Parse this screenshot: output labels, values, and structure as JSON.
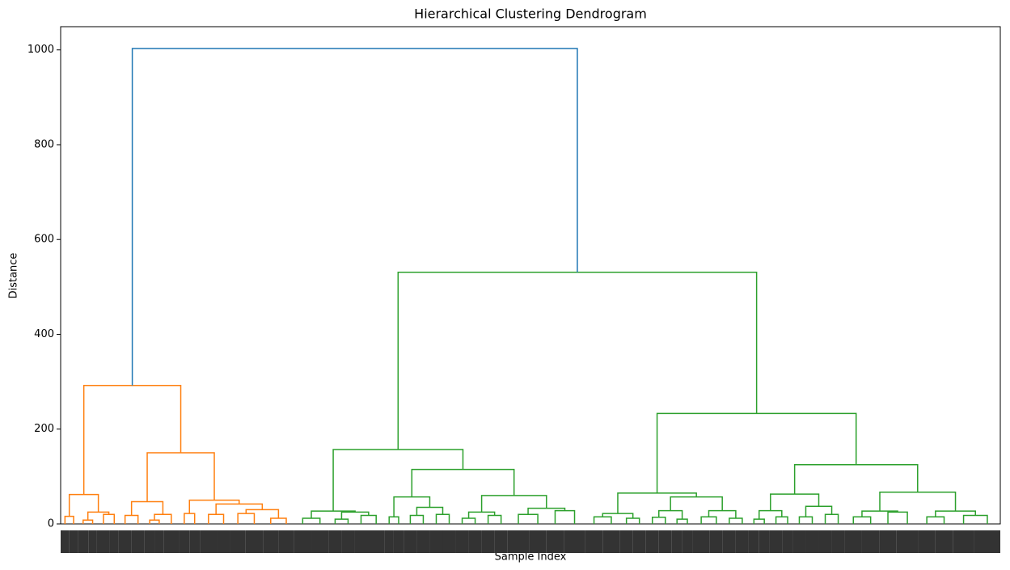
{
  "chart_data": {
    "type": "dendrogram",
    "title": "Hierarchical Clustering Dendrogram",
    "xlabel": "Sample Index",
    "ylabel": "Distance",
    "ylim": [
      0,
      1049
    ],
    "yticks": [
      0,
      200,
      400,
      600,
      800,
      1000
    ],
    "tree": {
      "height": 1003,
      "color": "#1f77b4",
      "children": [
        {
          "height": 292,
          "color": "#ff7f0e",
          "children": [
            {
              "height": 62,
              "children": [
                {
                  "height": 16,
                  "children": [
                    10,
                    10
                  ]
                },
                {
                  "height": 25,
                  "children": [
                    {
                      "height": 8,
                      "children": [
                        12,
                        10
                      ]
                    },
                    {
                      "height": 20,
                      "children": [
                        15,
                        10
                      ]
                    }
                  ]
                }
              ]
            },
            {
              "height": 150,
              "children": [
                {
                  "height": 47,
                  "children": [
                    {
                      "height": 18,
                      "children": [
                        15,
                        15
                      ]
                    },
                    {
                      "height": 20,
                      "children": [
                        {
                          "height": 8,
                          "children": [
                            12,
                            10
                          ]
                        },
                        18
                      ]
                    }
                  ]
                },
                {
                  "height": 50,
                  "children": [
                    {
                      "height": 22,
                      "children": [
                        12,
                        12
                      ]
                    },
                    {
                      "height": 42,
                      "children": [
                        {
                          "height": 20,
                          "children": [
                            20,
                            15
                          ]
                        },
                        {
                          "height": 30,
                          "children": [
                            {
                              "height": 22,
                              "children": [
                                18,
                                20
                              ]
                            },
                            {
                              "height": 12,
                              "children": [
                                18,
                                18
                              ]
                            }
                          ]
                        }
                      ]
                    }
                  ]
                }
              ]
            }
          ]
        },
        {
          "height": 531,
          "color": "#2ca02c",
          "children": [
            {
              "height": 157,
              "children": [
                {
                  "height": 27,
                  "children": [
                    {
                      "height": 12,
                      "children": [
                        20,
                        20
                      ]
                    },
                    {
                      "height": 25,
                      "children": [
                        {
                          "height": 10,
                          "children": [
                            15,
                            15
                          ]
                        },
                        {
                          "height": 18,
                          "children": [
                            15,
                            20
                          ]
                        }
                      ]
                    }
                  ]
                },
                {
                  "height": 115,
                  "children": [
                    {
                      "height": 57,
                      "children": [
                        {
                          "height": 15,
                          "children": [
                            10,
                            12
                          ]
                        },
                        {
                          "height": 35,
                          "children": [
                            {
                              "height": 18,
                              "children": [
                                15,
                                15
                              ]
                            },
                            {
                              "height": 20,
                              "children": [
                                15,
                                15
                              ]
                            }
                          ]
                        }
                      ]
                    },
                    {
                      "height": 60,
                      "children": [
                        {
                          "height": 25,
                          "children": [
                            {
                              "height": 12,
                              "children": [
                                15,
                                15
                              ]
                            },
                            {
                              "height": 18,
                              "children": [
                                15,
                                15
                              ]
                            }
                          ]
                        },
                        {
                          "height": 33,
                          "children": [
                            {
                              "height": 20,
                              "children": [
                                25,
                                20
                              ]
                            },
                            {
                              "height": 28,
                              "children": [
                                20,
                                25
                              ]
                            }
                          ]
                        }
                      ]
                    }
                  ]
                }
              ]
            },
            {
              "height": 233,
              "children": [
                {
                  "height": 65,
                  "children": [
                    {
                      "height": 22,
                      "children": [
                        {
                          "height": 15,
                          "children": [
                            20,
                            20
                          ]
                        },
                        {
                          "height": 12,
                          "children": [
                            15,
                            15
                          ]
                        }
                      ]
                    },
                    {
                      "height": 57,
                      "children": [
                        {
                          "height": 28,
                          "children": [
                            {
                              "height": 14,
                              "children": [
                                15,
                                15
                              ]
                            },
                            {
                              "height": 10,
                              "children": [
                                12,
                                12
                              ]
                            }
                          ]
                        },
                        {
                          "height": 28,
                          "children": [
                            {
                              "height": 15,
                              "children": [
                                20,
                                15
                              ]
                            },
                            {
                              "height": 12,
                              "children": [
                                15,
                                15
                              ]
                            }
                          ]
                        }
                      ]
                    }
                  ]
                },
                {
                  "height": 125,
                  "children": [
                    {
                      "height": 63,
                      "children": [
                        {
                          "height": 28,
                          "children": [
                            {
                              "height": 10,
                              "children": [
                                12,
                                12
                              ]
                            },
                            {
                              "height": 15,
                              "children": [
                                15,
                                12
                              ]
                            }
                          ]
                        },
                        {
                          "height": 37,
                          "children": [
                            {
                              "height": 15,
                              "children": [
                                15,
                                15
                              ]
                            },
                            {
                              "height": 20,
                              "children": [
                                15,
                                15
                              ]
                            }
                          ]
                        }
                      ]
                    },
                    {
                      "height": 67,
                      "children": [
                        {
                          "height": 27,
                          "children": [
                            {
                              "height": 15,
                              "children": [
                                20,
                                20
                              ]
                            },
                            {
                              "height": 25,
                              "children": [
                                20,
                                25
                              ]
                            }
                          ]
                        },
                        {
                          "height": 27,
                          "children": [
                            {
                              "height": 15,
                              "children": [
                                20,
                                20
                              ]
                            },
                            {
                              "height": 18,
                              "children": [
                                25,
                                30
                              ]
                            }
                          ]
                        }
                      ]
                    }
                  ]
                }
              ]
            }
          ]
        }
      ]
    }
  }
}
